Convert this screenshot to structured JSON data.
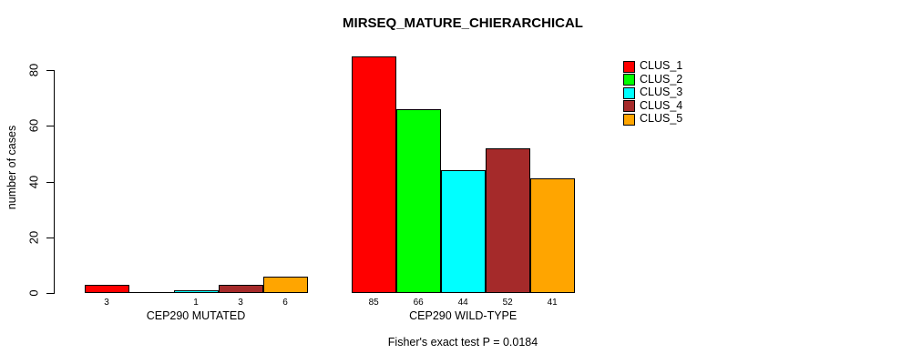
{
  "chart_data": {
    "type": "bar",
    "title": "MIRSEQ_MATURE_CHIERARCHICAL",
    "ylabel": "number of cases",
    "xlabel": "",
    "yticks": [
      0,
      20,
      40,
      60,
      80
    ],
    "ylim": [
      0,
      85
    ],
    "grid": false,
    "legend_position": "top-right",
    "series_names": [
      "CLUS_1",
      "CLUS_2",
      "CLUS_3",
      "CLUS_4",
      "CLUS_5"
    ],
    "colors": [
      "#ff0000",
      "#00ff00",
      "#00ffff",
      "#a52a2a",
      "#ffa500"
    ],
    "axis_color": "#000000",
    "bar_border_color": "#000000",
    "background": "#ffffff",
    "groups": [
      {
        "label": "CEP290 MUTATED",
        "values": [
          3,
          0,
          1,
          3,
          6
        ],
        "value_labels": [
          "3",
          "",
          "1",
          "3",
          "6"
        ]
      },
      {
        "label": "CEP290 WILD-TYPE",
        "values": [
          85,
          66,
          44,
          52,
          41
        ],
        "value_labels": [
          "85",
          "66",
          "44",
          "52",
          "41"
        ]
      }
    ],
    "annotation": "Fisher's exact test P = 0.0184"
  }
}
